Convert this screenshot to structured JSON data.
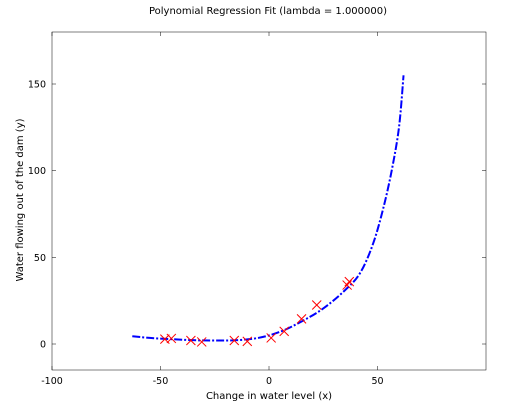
{
  "chart_data": {
    "type": "line",
    "title": "Polynomial Regression Fit (lambda = 1.000000)",
    "xlabel": "Change in water level (x)",
    "ylabel": "Water flowing out of the dam (y)",
    "xlim": [
      -100,
      100
    ],
    "ylim": [
      -15,
      180
    ],
    "x_ticks": [
      -100,
      -50,
      0,
      50
    ],
    "y_ticks": [
      0,
      50,
      100,
      150
    ],
    "grid": false,
    "legend": "none",
    "series": [
      {
        "kind": "scatter",
        "marker": "x",
        "color": "#ff0000",
        "x": [
          -48,
          -45,
          -36,
          -31,
          -16,
          -10,
          1,
          7,
          15,
          22,
          36,
          37
        ],
        "y": [
          2.8,
          3.2,
          2.0,
          1.2,
          2.0,
          1.5,
          3.5,
          7.3,
          14.5,
          22.5,
          34.0,
          36.0
        ]
      },
      {
        "kind": "line",
        "style": "dash-dot",
        "color": "#0000ff",
        "x": [
          -63,
          -55,
          -45,
          -35,
          -25,
          -15,
          -5,
          5,
          15,
          25,
          35,
          42,
          48,
          53,
          57,
          60,
          62
        ],
        "y": [
          4.5,
          3.5,
          2.8,
          2.2,
          2.0,
          2.2,
          3.5,
          7.0,
          13.0,
          20.5,
          31.0,
          41.0,
          58.0,
          80.0,
          103.0,
          126.0,
          155.0
        ]
      }
    ]
  }
}
